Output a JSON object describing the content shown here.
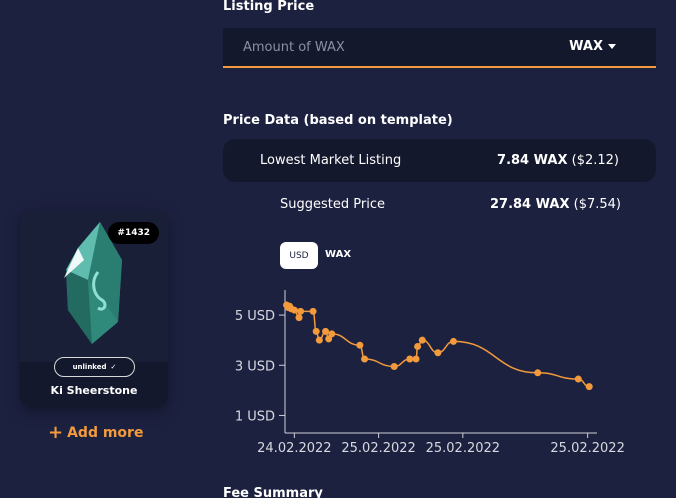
{
  "nft": {
    "asset_number": "#1432",
    "link_status": "unlinked",
    "name": "Ki Sheerstone",
    "add_more_label": "Add more"
  },
  "listing": {
    "title": "Listing Price",
    "placeholder": "Amount of WAX",
    "currency": "WAX"
  },
  "price_data": {
    "title": "Price Data (based on template)",
    "lowest_label": "Lowest Market Listing",
    "lowest_wax": "7.84 WAX",
    "lowest_usd": "($2.12)",
    "suggested_label": "Suggested Price",
    "suggested_wax": "27.84 WAX",
    "suggested_usd": "($7.54)"
  },
  "toggle": {
    "usd": "USD",
    "wax": "WAX"
  },
  "fee": {
    "title": "Fee Summary"
  },
  "colors": {
    "accent": "#f29a3c",
    "background": "#1d2140",
    "panel": "#14182d"
  },
  "chart_data": {
    "type": "line",
    "y_unit": "USD",
    "y_ticks": [
      "5 USD",
      "3 USD",
      "1 USD"
    ],
    "y_tick_values": [
      5,
      3,
      1
    ],
    "ylim": [
      0.3,
      6.0
    ],
    "xlim": [
      0,
      100
    ],
    "x_ticks": [
      "24.02.2022",
      "25.02.2022",
      "25.02.2022",
      "25.02.2022"
    ],
    "x_tick_positions": [
      3,
      30,
      57,
      97
    ],
    "grid": false,
    "series": [
      {
        "color": "#f29a3c",
        "points": [
          [
            0.5,
            5.4
          ],
          [
            1,
            5.3
          ],
          [
            1.5,
            5.35
          ],
          [
            2,
            5.25
          ],
          [
            3,
            5.2
          ],
          [
            4.5,
            4.9
          ],
          [
            5,
            5.15
          ],
          [
            9,
            5.15
          ],
          [
            10,
            4.35
          ],
          [
            11,
            4.0
          ],
          [
            13,
            4.35
          ],
          [
            14,
            4.05
          ],
          [
            15,
            4.25
          ],
          [
            24,
            3.8
          ],
          [
            25.5,
            3.25
          ],
          [
            35,
            2.95
          ],
          [
            40,
            3.25
          ],
          [
            42,
            3.25
          ],
          [
            42.5,
            3.75
          ],
          [
            44,
            4.0
          ],
          [
            49,
            3.5
          ],
          [
            54,
            3.95
          ],
          [
            81,
            2.7
          ],
          [
            94,
            2.45
          ],
          [
            97.5,
            2.15
          ]
        ]
      }
    ]
  }
}
